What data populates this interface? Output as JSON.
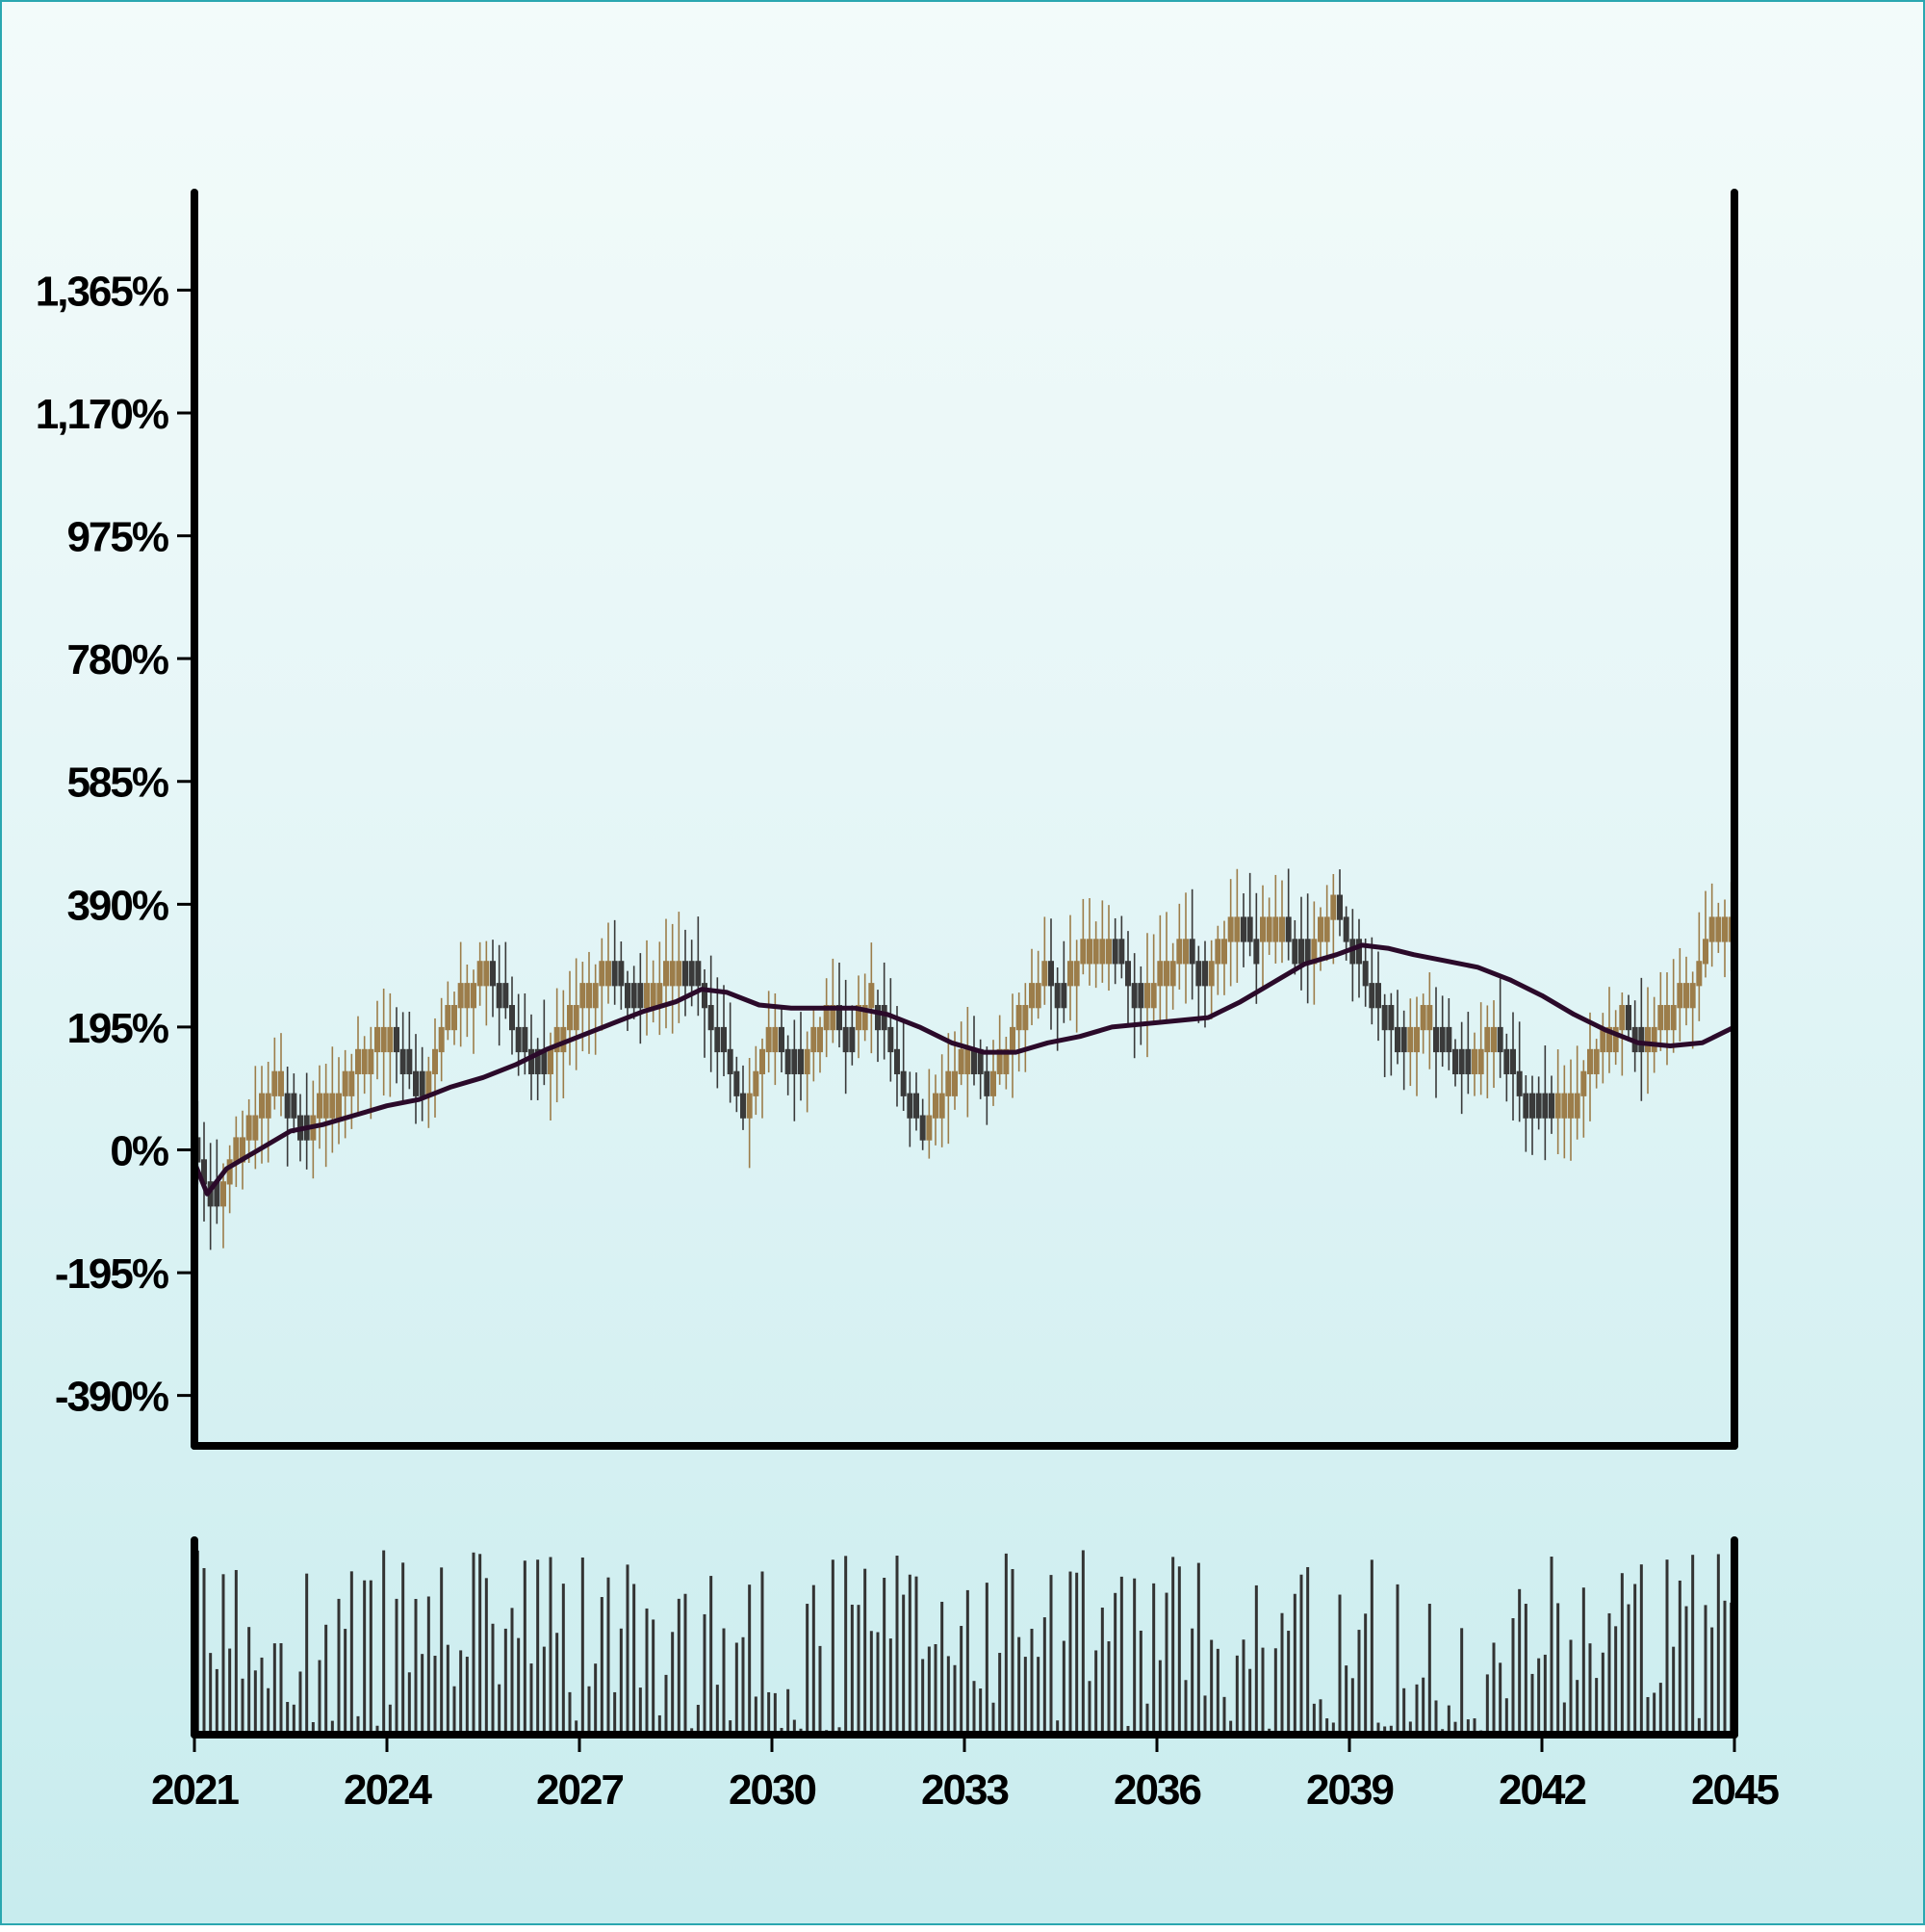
{
  "chart_data": [
    {
      "type": "candlestick",
      "title": "",
      "xlabel": "",
      "ylabel": "",
      "x_range": [
        2021.0,
        2045.0
      ],
      "ylim": [
        -470,
        1520
      ],
      "y_ticks": [
        -390,
        -195,
        0,
        195,
        390,
        585,
        780,
        975,
        1170,
        1365
      ],
      "y_tick_labels": [
        "-390%",
        "-195%",
        "0%",
        "195%",
        "390%",
        "585%",
        "780%",
        "975%",
        "1,170%",
        "1,365%"
      ],
      "grid": false,
      "legend": "none",
      "colors": {
        "up": "#9c7d4a",
        "down": "#3a3a3a",
        "moving_average": "#2b0a2a",
        "axis": "#000000"
      },
      "anchor_points": [
        [
          2021.0,
          0
        ],
        [
          2021.3,
          -90
        ],
        [
          2021.9,
          40
        ],
        [
          2022.3,
          100
        ],
        [
          2022.7,
          40
        ],
        [
          2023.2,
          80
        ],
        [
          2023.7,
          150
        ],
        [
          2024.1,
          180
        ],
        [
          2024.6,
          80
        ],
        [
          2025.0,
          220
        ],
        [
          2025.6,
          280
        ],
        [
          2026.0,
          200
        ],
        [
          2026.4,
          120
        ],
        [
          2027.0,
          230
        ],
        [
          2027.5,
          290
        ],
        [
          2027.9,
          230
        ],
        [
          2028.5,
          280
        ],
        [
          2028.9,
          260
        ],
        [
          2029.3,
          150
        ],
        [
          2029.6,
          60
        ],
        [
          2030.0,
          180
        ],
        [
          2030.5,
          130
        ],
        [
          2030.9,
          230
        ],
        [
          2031.2,
          170
        ],
        [
          2031.6,
          240
        ],
        [
          2031.9,
          150
        ],
        [
          2032.3,
          40
        ],
        [
          2032.6,
          60
        ],
        [
          2033.0,
          160
        ],
        [
          2033.4,
          100
        ],
        [
          2033.8,
          190
        ],
        [
          2034.2,
          270
        ],
        [
          2034.6,
          250
        ],
        [
          2034.9,
          330
        ],
        [
          2035.3,
          330
        ],
        [
          2035.7,
          250
        ],
        [
          2036.0,
          260
        ],
        [
          2036.4,
          320
        ],
        [
          2036.8,
          280
        ],
        [
          2037.2,
          340
        ],
        [
          2037.6,
          330
        ],
        [
          2038.0,
          350
        ],
        [
          2038.4,
          300
        ],
        [
          2038.8,
          400
        ],
        [
          2039.3,
          260
        ],
        [
          2039.8,
          180
        ],
        [
          2040.3,
          200
        ],
        [
          2040.8,
          120
        ],
        [
          2041.3,
          190
        ],
        [
          2041.8,
          70
        ],
        [
          2042.2,
          60
        ],
        [
          2042.6,
          90
        ],
        [
          2042.9,
          160
        ],
        [
          2043.3,
          200
        ],
        [
          2043.6,
          160
        ],
        [
          2043.9,
          210
        ],
        [
          2044.3,
          250
        ],
        [
          2044.7,
          350
        ],
        [
          2045.0,
          370
        ]
      ],
      "moving_average": [
        [
          2021.0,
          -20
        ],
        [
          2021.2,
          -70
        ],
        [
          2021.5,
          -30
        ],
        [
          2022.0,
          0
        ],
        [
          2022.5,
          30
        ],
        [
          2023.0,
          40
        ],
        [
          2023.5,
          55
        ],
        [
          2024.0,
          70
        ],
        [
          2024.5,
          80
        ],
        [
          2025.0,
          100
        ],
        [
          2025.5,
          115
        ],
        [
          2026.0,
          135
        ],
        [
          2026.5,
          160
        ],
        [
          2027.0,
          180
        ],
        [
          2027.5,
          200
        ],
        [
          2028.0,
          220
        ],
        [
          2028.5,
          235
        ],
        [
          2028.9,
          255
        ],
        [
          2029.3,
          250
        ],
        [
          2029.8,
          230
        ],
        [
          2030.3,
          225
        ],
        [
          2030.8,
          225
        ],
        [
          2031.3,
          225
        ],
        [
          2031.8,
          215
        ],
        [
          2032.3,
          195
        ],
        [
          2032.8,
          170
        ],
        [
          2033.3,
          155
        ],
        [
          2033.8,
          155
        ],
        [
          2034.3,
          170
        ],
        [
          2034.8,
          180
        ],
        [
          2035.3,
          195
        ],
        [
          2035.8,
          200
        ],
        [
          2036.3,
          205
        ],
        [
          2036.8,
          210
        ],
        [
          2037.3,
          235
        ],
        [
          2037.8,
          265
        ],
        [
          2038.3,
          295
        ],
        [
          2038.8,
          310
        ],
        [
          2039.2,
          325
        ],
        [
          2039.6,
          320
        ],
        [
          2040.0,
          310
        ],
        [
          2040.5,
          300
        ],
        [
          2041.0,
          290
        ],
        [
          2041.5,
          270
        ],
        [
          2042.0,
          245
        ],
        [
          2042.5,
          215
        ],
        [
          2043.0,
          190
        ],
        [
          2043.5,
          170
        ],
        [
          2044.0,
          165
        ],
        [
          2044.5,
          170
        ],
        [
          2045.0,
          195
        ]
      ],
      "volume_range": [
        0,
        100
      ]
    },
    {
      "type": "bar",
      "role": "volume",
      "title": "",
      "xlabel": "",
      "ylabel": "",
      "x_ticks": [
        2021,
        2024,
        2027,
        2030,
        2033,
        2036,
        2039,
        2042,
        2045
      ],
      "x_tick_labels": [
        "2021",
        "2024",
        "2027",
        "2030",
        "2033",
        "2036",
        "2039",
        "2042",
        "2045"
      ],
      "ylim": [
        0,
        100
      ],
      "color": "#333333",
      "grid": false,
      "legend": "none"
    }
  ]
}
